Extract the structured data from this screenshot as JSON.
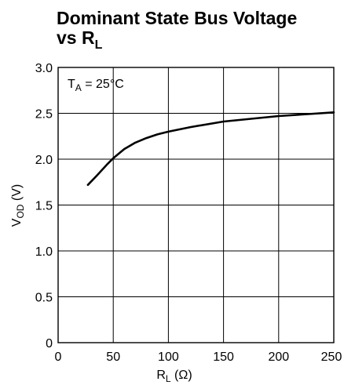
{
  "chart_data": {
    "type": "line",
    "title_line1": "Dominant State Bus Voltage",
    "title_line2": {
      "main": "vs R",
      "sub": "L"
    },
    "xlabel": {
      "main": "R",
      "sub": "L",
      "rest": " (Ω)"
    },
    "ylabel": {
      "main": "V",
      "sub": "OD",
      "rest": " (V)"
    },
    "annotation": {
      "main": "T",
      "sub": "A",
      "rest": " = 25°C"
    },
    "xlim": [
      0,
      250
    ],
    "ylim": [
      0,
      3.0
    ],
    "x_ticks": [
      "0",
      "50",
      "100",
      "150",
      "200",
      "250"
    ],
    "y_ticks": [
      "0",
      "0.5",
      "1.0",
      "1.5",
      "2.0",
      "2.5",
      "3.0"
    ],
    "grid": true,
    "series": [
      {
        "x": [
          27,
          35,
          45,
          50,
          60,
          70,
          80,
          90,
          100,
          120,
          150,
          200,
          250
        ],
        "y": [
          1.72,
          1.82,
          1.95,
          2.01,
          2.11,
          2.18,
          2.23,
          2.27,
          2.3,
          2.35,
          2.41,
          2.47,
          2.51
        ]
      }
    ]
  }
}
